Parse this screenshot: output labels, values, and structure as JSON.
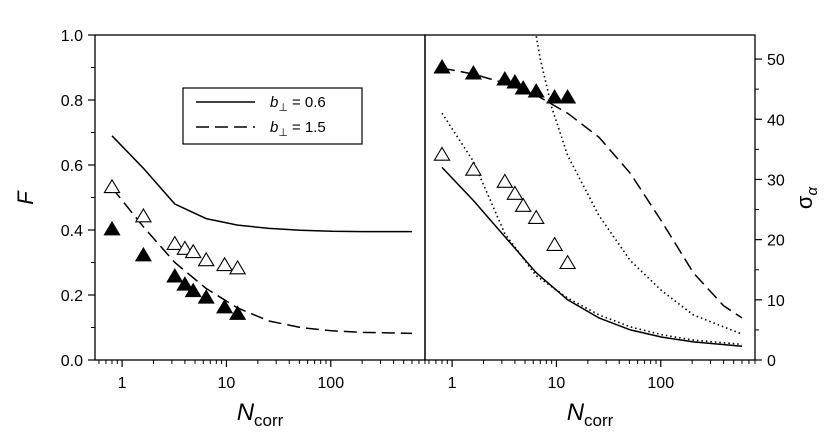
{
  "chart_data": [
    {
      "type": "line",
      "panel": "left",
      "xscale": "log",
      "xlim": [
        0.55,
        800
      ],
      "ylim": [
        0.0,
        1.0
      ],
      "xlabel": {
        "main": "N",
        "sub": "corr"
      },
      "ylabel": "F",
      "xticks": [
        {
          "value": 1,
          "label": "1"
        },
        {
          "value": 10,
          "label": "10"
        },
        {
          "value": 100,
          "label": "100"
        }
      ],
      "yticks": [
        {
          "value": 0.0,
          "label": "0.0"
        },
        {
          "value": 0.2,
          "label": "0.2"
        },
        {
          "value": 0.4,
          "label": "0.4"
        },
        {
          "value": 0.6,
          "label": "0.6"
        },
        {
          "value": 0.8,
          "label": "0.8"
        },
        {
          "value": 1.0,
          "label": "1.0"
        }
      ],
      "legend": {
        "position": "top-center",
        "entries": [
          {
            "label": "= 0.6",
            "symbol": "b",
            "subscript": "⊥",
            "line": "solid"
          },
          {
            "label": "= 1.5",
            "symbol": "b",
            "subscript": "⊥",
            "line": "dashed"
          }
        ]
      },
      "series": [
        {
          "name": "b⊥ = 0.6",
          "kind": "line",
          "style": "solid",
          "x": [
            0.8,
            1.6,
            3.2,
            6.4,
            12.8,
            25.6,
            51.2,
            102.4,
            204.8,
            600
          ],
          "y": [
            0.69,
            0.59,
            0.48,
            0.435,
            0.415,
            0.405,
            0.399,
            0.396,
            0.395,
            0.395
          ]
        },
        {
          "name": "b⊥ = 1.5",
          "kind": "line",
          "style": "dashed",
          "x": [
            0.8,
            1.6,
            3.2,
            6.4,
            12.8,
            25.6,
            51.2,
            102.4,
            204.8,
            600
          ],
          "y": [
            0.53,
            0.41,
            0.3,
            0.22,
            0.16,
            0.12,
            0.1,
            0.09,
            0.085,
            0.082
          ]
        },
        {
          "name": "open triangles",
          "kind": "marker",
          "marker": "triangle-open",
          "x": [
            0.8,
            1.6,
            3.2,
            4.0,
            4.8,
            6.4,
            9.6,
            12.8
          ],
          "y": [
            0.53,
            0.44,
            0.355,
            0.34,
            0.33,
            0.305,
            0.29,
            0.28
          ]
        },
        {
          "name": "filled triangles",
          "kind": "marker",
          "marker": "triangle-filled",
          "x": [
            0.8,
            1.6,
            3.2,
            4.0,
            4.8,
            6.4,
            9.6,
            12.8
          ],
          "y": [
            0.4,
            0.32,
            0.255,
            0.23,
            0.21,
            0.19,
            0.16,
            0.14
          ]
        }
      ]
    },
    {
      "type": "line",
      "panel": "right",
      "xscale": "log",
      "xlim": [
        0.55,
        800
      ],
      "ylim": [
        0,
        54
      ],
      "xlabel": {
        "main": "N",
        "sub": "corr"
      },
      "ylabel": {
        "main": "σ",
        "sub": "α"
      },
      "xticks": [
        {
          "value": 1,
          "label": "1"
        },
        {
          "value": 10,
          "label": "10"
        },
        {
          "value": 100,
          "label": "100"
        }
      ],
      "yticks": [
        {
          "value": 0,
          "label": "0"
        },
        {
          "value": 10,
          "label": "10"
        },
        {
          "value": 20,
          "label": "20"
        },
        {
          "value": 30,
          "label": "30"
        },
        {
          "value": 40,
          "label": "40"
        },
        {
          "value": 50,
          "label": "50"
        }
      ],
      "series": [
        {
          "name": "solid curve",
          "kind": "line",
          "style": "solid",
          "x": [
            0.8,
            1.6,
            3.2,
            6.4,
            12.8,
            25.6,
            51.2,
            102.4,
            204.8,
            600
          ],
          "y": [
            32,
            26.5,
            20.5,
            14.5,
            10,
            7,
            5,
            3.8,
            3,
            2.3
          ]
        },
        {
          "name": "dashed curve",
          "kind": "line",
          "style": "dashed",
          "x": [
            0.8,
            1.6,
            3.2,
            6.4,
            12.8,
            25.6,
            51.2,
            102.4,
            204.8,
            400,
            600
          ],
          "y": [
            48.5,
            47.5,
            46,
            44,
            41,
            37,
            31,
            23,
            14.5,
            9,
            7
          ]
        },
        {
          "name": "dotted curve (left)",
          "kind": "line",
          "style": "dotted",
          "x": [
            0.8,
            1.6,
            3.2,
            6.4,
            12.8,
            25.6,
            51.2,
            102.4,
            204.8,
            600
          ],
          "y": [
            41,
            33,
            21,
            14,
            10.3,
            7.5,
            5.5,
            4.2,
            3.3,
            2.6
          ]
        },
        {
          "name": "dotted curve (right)",
          "kind": "line",
          "style": "dotted",
          "x": [
            6.1,
            7.0,
            9.0,
            12.8,
            25.6,
            51.2,
            102.4,
            204.8,
            600
          ],
          "y": [
            56,
            50,
            42,
            34,
            24,
            16.5,
            11.5,
            7.5,
            4.3
          ]
        },
        {
          "name": "open triangles",
          "kind": "marker",
          "marker": "triangle-open",
          "x": [
            0.8,
            1.6,
            3.2,
            4.0,
            4.8,
            6.4,
            9.6,
            12.8
          ],
          "y": [
            34,
            31.5,
            29.5,
            27.5,
            25.5,
            23.5,
            19,
            16
          ]
        },
        {
          "name": "filled triangles",
          "kind": "marker",
          "marker": "triangle-filled",
          "x": [
            0.8,
            1.6,
            3.2,
            4.0,
            4.8,
            6.4,
            9.6,
            12.8
          ],
          "y": [
            48.5,
            47.5,
            46.5,
            46,
            45,
            44.5,
            43.5,
            43.5
          ]
        }
      ]
    }
  ]
}
